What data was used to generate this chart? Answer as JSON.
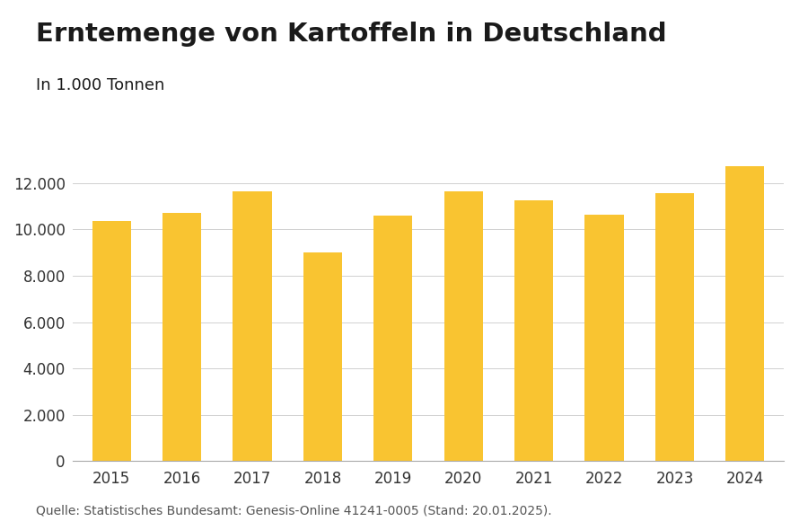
{
  "title": "Erntemenge von Kartoffeln in Deutschland",
  "subtitle": "In 1.000 Tonnen",
  "source": "Quelle: Statistisches Bundesamt: Genesis-Online 41241-0005 (Stand: 20.01.2025).",
  "years": [
    2015,
    2016,
    2017,
    2018,
    2019,
    2020,
    2021,
    2022,
    2023,
    2024
  ],
  "values": [
    10350,
    10700,
    11650,
    9000,
    10600,
    11650,
    11250,
    10650,
    11550,
    12750
  ],
  "bar_color": "#F9C431",
  "background_color": "#ffffff",
  "ylim": [
    0,
    13500
  ],
  "yticks": [
    0,
    2000,
    4000,
    6000,
    8000,
    10000,
    12000
  ],
  "title_fontsize": 21,
  "subtitle_fontsize": 13,
  "tick_fontsize": 12,
  "source_fontsize": 10,
  "grid_color": "#d0d0d0",
  "axis_color": "#aaaaaa",
  "bar_width": 0.55,
  "title_color": "#1a1a1a",
  "tick_color": "#333333",
  "source_color": "#555555"
}
